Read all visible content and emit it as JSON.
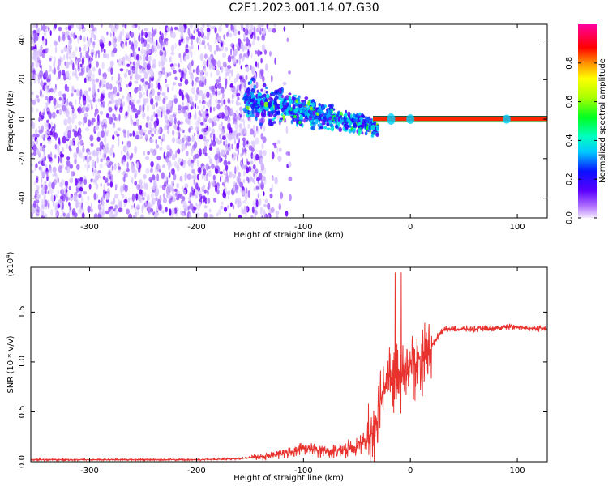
{
  "title": "C2E1.2023.001.14.07.G30",
  "colors": {
    "snr_line": "#e8322e",
    "axis": "#000000",
    "spectral_low": "#7a00ff",
    "spectral_high": "#ff0000"
  },
  "chart_data": [
    {
      "type": "heatmap",
      "title": "",
      "xlabel": "Height of straight line (km)",
      "ylabel": "Frequency (Hz)",
      "xlim": [
        -355,
        128
      ],
      "ylim": [
        -50,
        48
      ],
      "xticks": [
        -300,
        -200,
        -100,
        0,
        100
      ],
      "yticks": [
        -40,
        -20,
        0,
        20,
        40
      ],
      "colorbar": {
        "label": "Normalized spectral amplitude",
        "range": [
          0.0,
          1.0
        ],
        "ticks": [
          "0.0",
          "0.2",
          "0.4",
          "0.6",
          "0.8"
        ],
        "colormap": "rainbow (violet to red)"
      },
      "features": [
        {
          "description": "diffuse noise",
          "x_range": [
            -355,
            -135
          ],
          "frequency_range": [
            -50,
            48
          ],
          "amplitude": 0.05
        },
        {
          "description": "signal band descending toward 0 Hz",
          "x_range": [
            -155,
            -30
          ],
          "frequency_center": [
            10,
            -4
          ],
          "amplitude": 0.25
        },
        {
          "description": "stable carrier at 0 Hz",
          "x_range": [
            -35,
            128
          ],
          "frequency_center": 0,
          "amplitude": 0.95
        }
      ]
    },
    {
      "type": "line",
      "title": "",
      "xlabel": "Height of straight line (km)",
      "ylabel": "SNR (10 * v/v)",
      "y_multiplier": "(x10^4)",
      "xlim": [
        -355,
        128
      ],
      "ylim": [
        0,
        1.95
      ],
      "xticks": [
        -300,
        -200,
        -100,
        0,
        100
      ],
      "yticks": [
        "0.0",
        "0.5",
        "1.0",
        "1.5"
      ],
      "series": [
        {
          "x": [
            -355,
            -300,
            -250,
            -200,
            -160,
            -130,
            -110,
            -100,
            -90,
            -75,
            -60,
            -50,
            -40,
            -35,
            -30,
            -25,
            -20,
            -15,
            -10,
            -5,
            0,
            5,
            10,
            15,
            20,
            25,
            30,
            40,
            60,
            80,
            90,
            95,
            100,
            110,
            128
          ],
          "y": [
            0.02,
            0.02,
            0.02,
            0.02,
            0.03,
            0.06,
            0.1,
            0.14,
            0.12,
            0.1,
            0.12,
            0.16,
            0.22,
            0.3,
            0.55,
            0.75,
            0.85,
            0.8,
            0.9,
            0.95,
            1.0,
            0.95,
            1.05,
            1.1,
            1.15,
            1.25,
            1.32,
            1.33,
            1.33,
            1.34,
            1.35,
            1.36,
            1.35,
            1.34,
            1.33
          ]
        }
      ]
    }
  ]
}
